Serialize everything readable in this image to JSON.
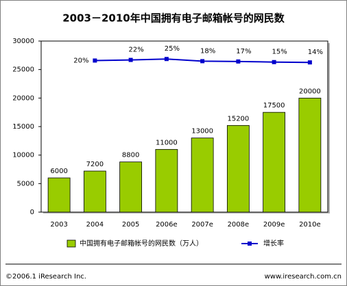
{
  "chart_data": {
    "type": "bar_line",
    "title": "2003－2010年中国拥有电子邮箱帐号的网民数",
    "categories": [
      "2003",
      "2004",
      "2005",
      "2006e",
      "2007e",
      "2008e",
      "2009e",
      "2010e"
    ],
    "series": [
      {
        "name": "中国拥有电子邮箱帐号的网民数（万人）",
        "type": "bar",
        "color": "#99cc00",
        "values": [
          6000,
          7200,
          8800,
          11000,
          13000,
          15200,
          17500,
          20000
        ]
      },
      {
        "name": "增长率",
        "type": "line",
        "axis": "y2",
        "color": "#0000cc",
        "values": [
          null,
          20,
          22,
          25,
          18,
          17,
          15,
          14
        ],
        "value_labels": [
          null,
          "20%",
          "22%",
          "25%",
          "18%",
          "17%",
          "15%",
          "14%"
        ]
      }
    ],
    "ylim": [
      0,
      30000
    ],
    "yticks": [
      0,
      5000,
      10000,
      15000,
      20000,
      25000,
      30000
    ],
    "y2lim": [
      -470,
      83
    ],
    "legend": "bottom",
    "footer_left": "©2006.1 iResearch Inc.",
    "footer_right": "www.iresearch.com.cn"
  }
}
